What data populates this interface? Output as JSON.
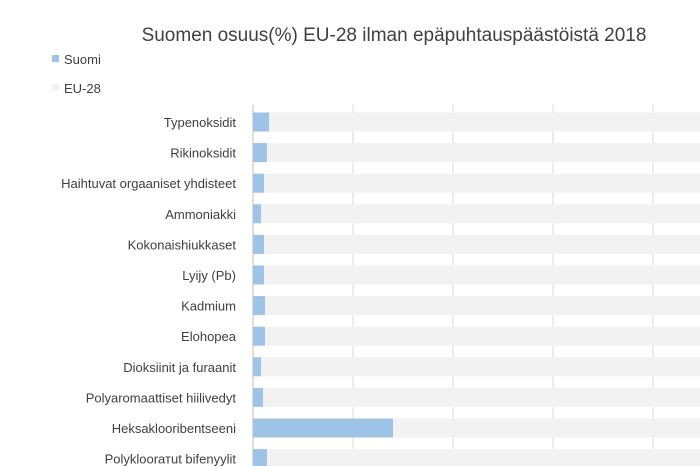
{
  "chart_data": {
    "type": "bar",
    "orientation": "horizontal",
    "title": "Suomen osuus(%) EU-28 ilman epäpuhtauspäästöistä 2018",
    "categories": [
      "Typenoksidit",
      "Rikinoksidit",
      "Haihtuvat orgaaniset yhdisteet",
      "Ammoniakki",
      "Kokonaishiukkaset",
      "Lyijy (Pb)",
      "Kadmium",
      "Elohopea",
      "Dioksiinit ja furaanit",
      "Polyaromaattiset hiilivedyt",
      "Heksaklooribentseeni",
      "Polykloorатut bifenyylit"
    ],
    "series": [
      {
        "name": "Suomi",
        "color": "#9dc3e6",
        "values": [
          1.6,
          1.4,
          1.1,
          0.8,
          1.1,
          1.1,
          1.2,
          1.2,
          0.8,
          1.0,
          14.0,
          1.4
        ]
      },
      {
        "name": "EU-28",
        "color": "#f2f2f2",
        "values": [
          100,
          100,
          100,
          100,
          100,
          100,
          100,
          100,
          100,
          100,
          100,
          100
        ]
      }
    ],
    "xlim": [
      0,
      100
    ],
    "grid": true,
    "legend_position": "top-left"
  }
}
